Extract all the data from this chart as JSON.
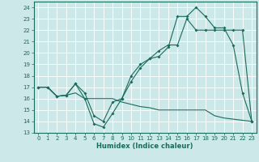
{
  "xlabel": "Humidex (Indice chaleur)",
  "xlim": [
    -0.5,
    23.5
  ],
  "ylim": [
    13,
    24.5
  ],
  "yticks": [
    13,
    14,
    15,
    16,
    17,
    18,
    19,
    20,
    21,
    22,
    23,
    24
  ],
  "xticks": [
    0,
    1,
    2,
    3,
    4,
    5,
    6,
    7,
    8,
    9,
    10,
    11,
    12,
    13,
    14,
    15,
    16,
    17,
    18,
    19,
    20,
    21,
    22,
    23
  ],
  "bg_color": "#cce8e8",
  "grid_color": "#ffffff",
  "line_color": "#1a6b5a",
  "line1_x": [
    0,
    1,
    2,
    3,
    4,
    5,
    6,
    7,
    8,
    9,
    10,
    11,
    12,
    13,
    14,
    15,
    16,
    17,
    18,
    19,
    20,
    21,
    22,
    23
  ],
  "line1_y": [
    17,
    17,
    16.2,
    16.3,
    17.3,
    16.0,
    13.8,
    13.5,
    14.7,
    16.0,
    17.5,
    18.7,
    19.5,
    19.7,
    20.5,
    23.2,
    23.2,
    24.0,
    23.2,
    22.2,
    22.2,
    20.7,
    16.5,
    14.0
  ],
  "line2_x": [
    0,
    1,
    2,
    3,
    4,
    5,
    6,
    7,
    8,
    9,
    10,
    11,
    12,
    13,
    14,
    15,
    16,
    17,
    18,
    19,
    20,
    21,
    22,
    23
  ],
  "line2_y": [
    17,
    17,
    16.2,
    16.3,
    17.3,
    16.5,
    14.5,
    14.0,
    15.7,
    16.0,
    18.0,
    19.0,
    19.5,
    20.2,
    20.7,
    20.7,
    23.0,
    22.0,
    22.0,
    22.0,
    22.0,
    22.0,
    22.0,
    14.0
  ],
  "line3_x": [
    0,
    1,
    2,
    3,
    4,
    5,
    6,
    7,
    8,
    9,
    10,
    11,
    12,
    13,
    14,
    15,
    16,
    17,
    18,
    19,
    20,
    21,
    22,
    23
  ],
  "line3_y": [
    17.0,
    17.0,
    16.2,
    16.3,
    16.5,
    16.0,
    16.0,
    16.0,
    16.0,
    15.7,
    15.5,
    15.3,
    15.2,
    15.0,
    15.0,
    15.0,
    15.0,
    15.0,
    15.0,
    14.5,
    14.3,
    14.2,
    14.1,
    14.0
  ],
  "tick_fontsize": 5.0,
  "xlabel_fontsize": 6.0
}
